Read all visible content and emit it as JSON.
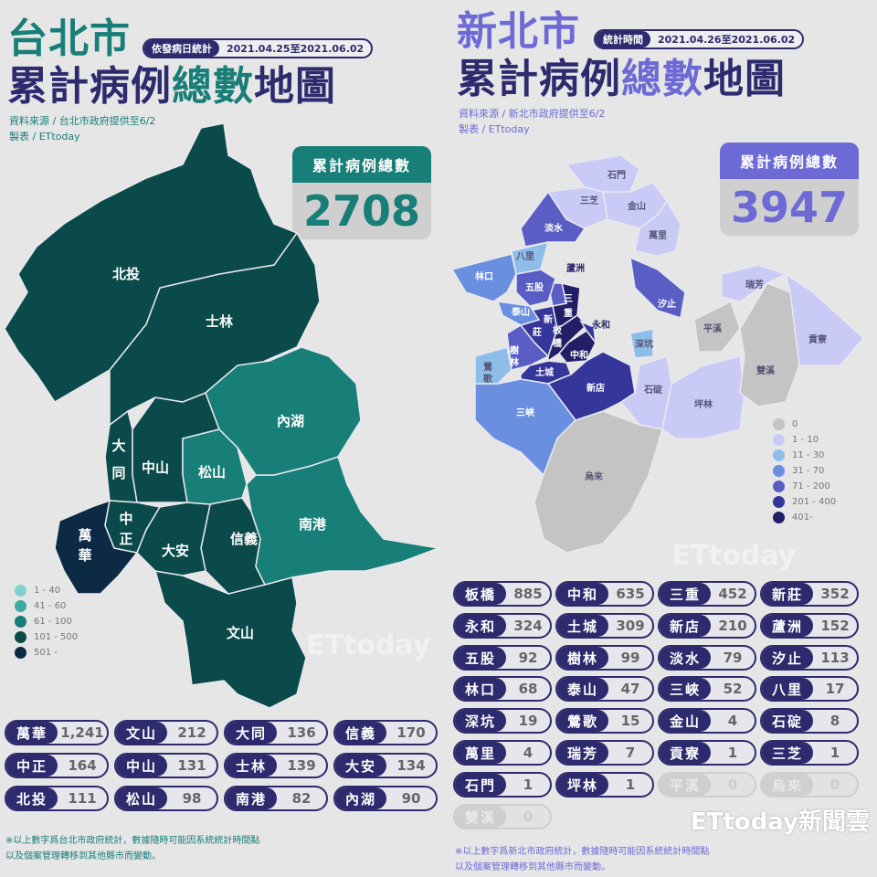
{
  "colors": {
    "teal": "#177e78",
    "navy": "#2d2a6e",
    "periwinkle": "#6d6ad6"
  },
  "taipei": {
    "title_city": "台北市",
    "title_main_a": "累計病例",
    "title_main_b": "總數",
    "title_main_c": "地圖",
    "badge_label": "依發病日統計",
    "badge_value": "2021.04.25至2021.06.02",
    "source": "資料來源 / 台北市政府提供至6/2",
    "maker": "製表 / ETtoday",
    "total_label": "累計病例總數",
    "total_value": "2708",
    "legend": [
      {
        "label": "1 - 40",
        "color": "#7fd1cf"
      },
      {
        "label": "41 - 60",
        "color": "#3fa8a0"
      },
      {
        "label": "61 - 100",
        "color": "#177e78"
      },
      {
        "label": "101 - 500",
        "color": "#0b4a4a"
      },
      {
        "label": "501 -",
        "color": "#0d2a45"
      }
    ],
    "stats": [
      {
        "name": "萬華",
        "value": "1,241"
      },
      {
        "name": "文山",
        "value": "212"
      },
      {
        "name": "大同",
        "value": "136"
      },
      {
        "name": "信義",
        "value": "170"
      },
      {
        "name": "中正",
        "value": "164"
      },
      {
        "name": "中山",
        "value": "131"
      },
      {
        "name": "士林",
        "value": "139"
      },
      {
        "name": "大安",
        "value": "134"
      },
      {
        "name": "北投",
        "value": "111"
      },
      {
        "name": "松山",
        "value": "98"
      },
      {
        "name": "南港",
        "value": "82"
      },
      {
        "name": "內湖",
        "value": "90"
      }
    ],
    "note1": "※以上數字爲台北市政府統計，數據隨時可能因系統統計時間點",
    "note2": "以及個案管理轉移到其他縣市而變動。"
  },
  "newtaipei": {
    "title_city": "新北市",
    "title_main_a": "累計病例",
    "title_main_b": "總數",
    "title_main_c": "地圖",
    "badge_label": "統計時間",
    "badge_value": "2021.04.26至2021.06.02",
    "source": "資料來源 / 新北市政府提供至6/2",
    "maker": "製表 / ETtoday",
    "total_label": "累計病例總數",
    "total_value": "3947",
    "legend": [
      {
        "label": "0",
        "color": "#c4c4c4"
      },
      {
        "label": "1 - 10",
        "color": "#cacaf6"
      },
      {
        "label": "11 - 30",
        "color": "#8fbdea"
      },
      {
        "label": "31 - 70",
        "color": "#6a8fe0"
      },
      {
        "label": "71 - 200",
        "color": "#5a5ec4"
      },
      {
        "label": "201 - 400",
        "color": "#34369a"
      },
      {
        "label": "401-",
        "color": "#221f66"
      }
    ],
    "stats": [
      {
        "name": "板橋",
        "value": "885"
      },
      {
        "name": "中和",
        "value": "635"
      },
      {
        "name": "三重",
        "value": "452"
      },
      {
        "name": "新莊",
        "value": "352"
      },
      {
        "name": "永和",
        "value": "324"
      },
      {
        "name": "土城",
        "value": "309"
      },
      {
        "name": "新店",
        "value": "210"
      },
      {
        "name": "蘆洲",
        "value": "152"
      },
      {
        "name": "五股",
        "value": "92"
      },
      {
        "name": "樹林",
        "value": "99"
      },
      {
        "name": "淡水",
        "value": "79"
      },
      {
        "name": "汐止",
        "value": "113"
      },
      {
        "name": "林口",
        "value": "68"
      },
      {
        "name": "泰山",
        "value": "47"
      },
      {
        "name": "三峽",
        "value": "52"
      },
      {
        "name": "八里",
        "value": "17"
      },
      {
        "name": "深坑",
        "value": "19"
      },
      {
        "name": "鶯歌",
        "value": "15"
      },
      {
        "name": "金山",
        "value": "4"
      },
      {
        "name": "石碇",
        "value": "8"
      },
      {
        "name": "萬里",
        "value": "4"
      },
      {
        "name": "瑞芳",
        "value": "7"
      },
      {
        "name": "貢寮",
        "value": "1"
      },
      {
        "name": "三芝",
        "value": "1"
      },
      {
        "name": "石門",
        "value": "1"
      },
      {
        "name": "坪林",
        "value": "1"
      },
      {
        "name": "平溪",
        "value": "0"
      },
      {
        "name": "烏來",
        "value": "0"
      },
      {
        "name": "雙溪",
        "value": "0"
      }
    ],
    "note1": "※以上數字爲新北市政府統計，數據隨時可能因系統統計時間點",
    "note2": "以及個案管理轉移到其他縣市而變動。"
  },
  "logo": "ETtoday新聞雲",
  "watermark": "ETtoday"
}
